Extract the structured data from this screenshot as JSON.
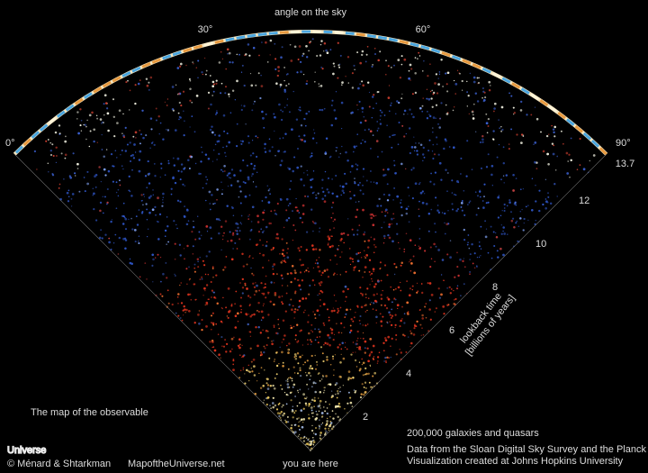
{
  "header": {
    "title": "angle on the sky",
    "angles": [
      "0°",
      "30°",
      "60°",
      "90°"
    ]
  },
  "axis": {
    "title": "lookback time",
    "subtitle": "[billions of years]",
    "ticks": [
      2,
      4,
      6,
      8,
      10,
      12,
      13.7
    ]
  },
  "origin": "you are here",
  "brand": {
    "line1": "The map of the observable",
    "line2": "Universe",
    "credit": "© Ménard & Shtarkman",
    "site": "MapoftheUniverse.net"
  },
  "caption": {
    "title": "200,000 galaxies and quasars",
    "line1": "Data from the Sloan Digital Sky Survey and the Planck satellite",
    "line2": "Visualization created at Johns Hopkins University"
  }
}
